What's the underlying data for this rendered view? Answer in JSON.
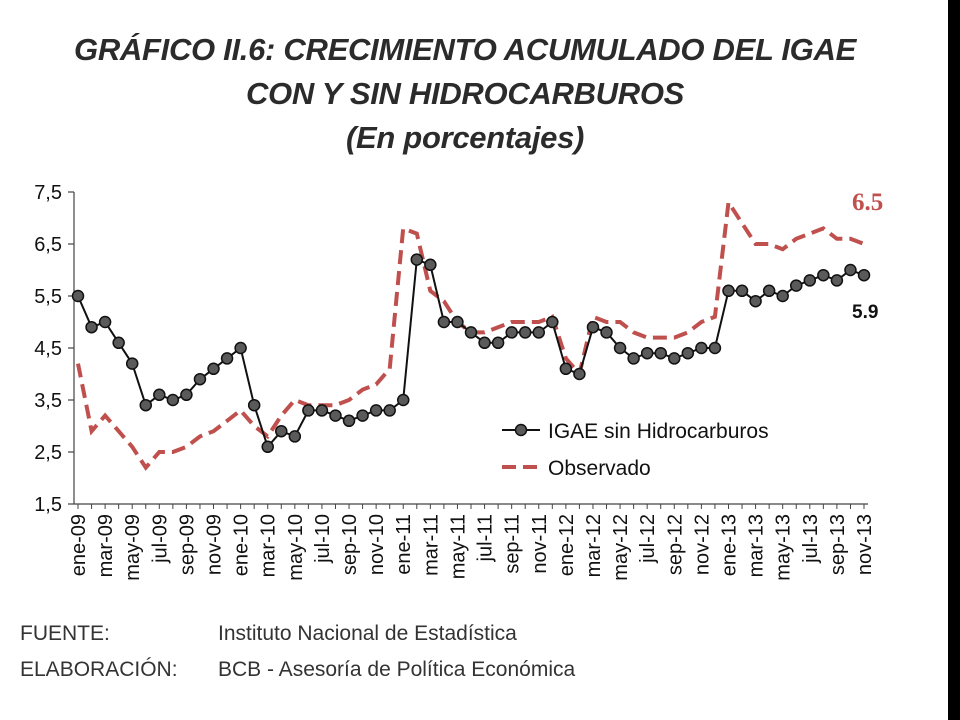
{
  "title": {
    "line1": "GRÁFICO II.6: CRECIMIENTO ACUMULADO DEL IGAE",
    "line2": "CON Y SIN HIDROCARBUROS",
    "line3": "(En porcentajes)"
  },
  "chart_data": {
    "type": "line",
    "yticks": [
      "1,5",
      "2,5",
      "3,5",
      "4,5",
      "5,5",
      "6,5",
      "7,5"
    ],
    "ylim": [
      1.5,
      7.5
    ],
    "xtick_labels": [
      "ene-09",
      "mar-09",
      "may-09",
      "jul-09",
      "sep-09",
      "nov-09",
      "ene-10",
      "mar-10",
      "may-10",
      "jul-10",
      "sep-10",
      "nov-10",
      "ene-11",
      "mar-11",
      "may-11",
      "jul-11",
      "sep-11",
      "nov-11",
      "ene-12",
      "mar-12",
      "may-12",
      "jul-12",
      "sep-12",
      "nov-12",
      "ene-13",
      "mar-13",
      "may-13",
      "jul-13",
      "sep-13",
      "nov-13"
    ],
    "x": [
      "ene-09",
      "feb-09",
      "mar-09",
      "abr-09",
      "may-09",
      "jun-09",
      "jul-09",
      "ago-09",
      "sep-09",
      "oct-09",
      "nov-09",
      "dic-09",
      "ene-10",
      "feb-10",
      "mar-10",
      "abr-10",
      "may-10",
      "jun-10",
      "jul-10",
      "ago-10",
      "sep-10",
      "oct-10",
      "nov-10",
      "dic-10",
      "ene-11",
      "feb-11",
      "mar-11",
      "abr-11",
      "may-11",
      "jun-11",
      "jul-11",
      "ago-11",
      "sep-11",
      "oct-11",
      "nov-11",
      "dic-11",
      "ene-12",
      "feb-12",
      "mar-12",
      "abr-12",
      "may-12",
      "jun-12",
      "jul-12",
      "ago-12",
      "sep-12",
      "oct-12",
      "nov-12",
      "dic-12",
      "ene-13",
      "feb-13",
      "mar-13",
      "abr-13",
      "may-13",
      "jun-13",
      "jul-13",
      "ago-13",
      "sep-13",
      "oct-13",
      "nov-13"
    ],
    "grid": false,
    "legend_position": "bottom-right",
    "series": [
      {
        "name": "IGAE sin Hidrocarburos",
        "color": "#111111",
        "style": "line-with-circle-markers",
        "values": [
          5.5,
          4.9,
          5.0,
          4.6,
          4.2,
          3.4,
          3.6,
          3.5,
          3.6,
          3.9,
          4.1,
          4.3,
          4.5,
          3.4,
          2.6,
          2.9,
          2.8,
          3.3,
          3.3,
          3.2,
          3.1,
          3.2,
          3.3,
          3.3,
          3.5,
          6.2,
          6.1,
          5.0,
          5.0,
          4.8,
          4.6,
          4.6,
          4.8,
          4.8,
          4.8,
          5.0,
          4.1,
          4.0,
          4.9,
          4.8,
          4.5,
          4.3,
          4.4,
          4.4,
          4.3,
          4.4,
          4.5,
          4.5,
          5.6,
          5.6,
          5.4,
          5.6,
          5.5,
          5.7,
          5.8,
          5.9,
          5.8,
          6.0,
          5.9
        ],
        "end_label": "5.9"
      },
      {
        "name": "Observado",
        "color": "#c0504d",
        "style": "dashed",
        "values": [
          4.2,
          2.9,
          3.2,
          2.9,
          2.6,
          2.2,
          2.5,
          2.5,
          2.6,
          2.8,
          2.9,
          3.1,
          3.3,
          3.0,
          2.8,
          3.2,
          3.5,
          3.4,
          3.4,
          3.4,
          3.5,
          3.7,
          3.8,
          4.1,
          6.8,
          6.7,
          5.6,
          5.4,
          5.0,
          4.8,
          4.8,
          4.9,
          5.0,
          5.0,
          5.0,
          5.1,
          4.3,
          4.0,
          5.1,
          5.0,
          5.0,
          4.8,
          4.7,
          4.7,
          4.7,
          4.8,
          5.0,
          5.1,
          7.3,
          6.9,
          6.5,
          6.5,
          6.4,
          6.6,
          6.7,
          6.8,
          6.6,
          6.6,
          6.5
        ],
        "end_label": "6.5"
      }
    ]
  },
  "footer": {
    "source_key": "FUENTE:",
    "source_value": "Instituto Nacional de Estadística",
    "elab_key": "ELABORACIÓN:",
    "elab_value": "BCB - Asesoría de Política Económica"
  }
}
